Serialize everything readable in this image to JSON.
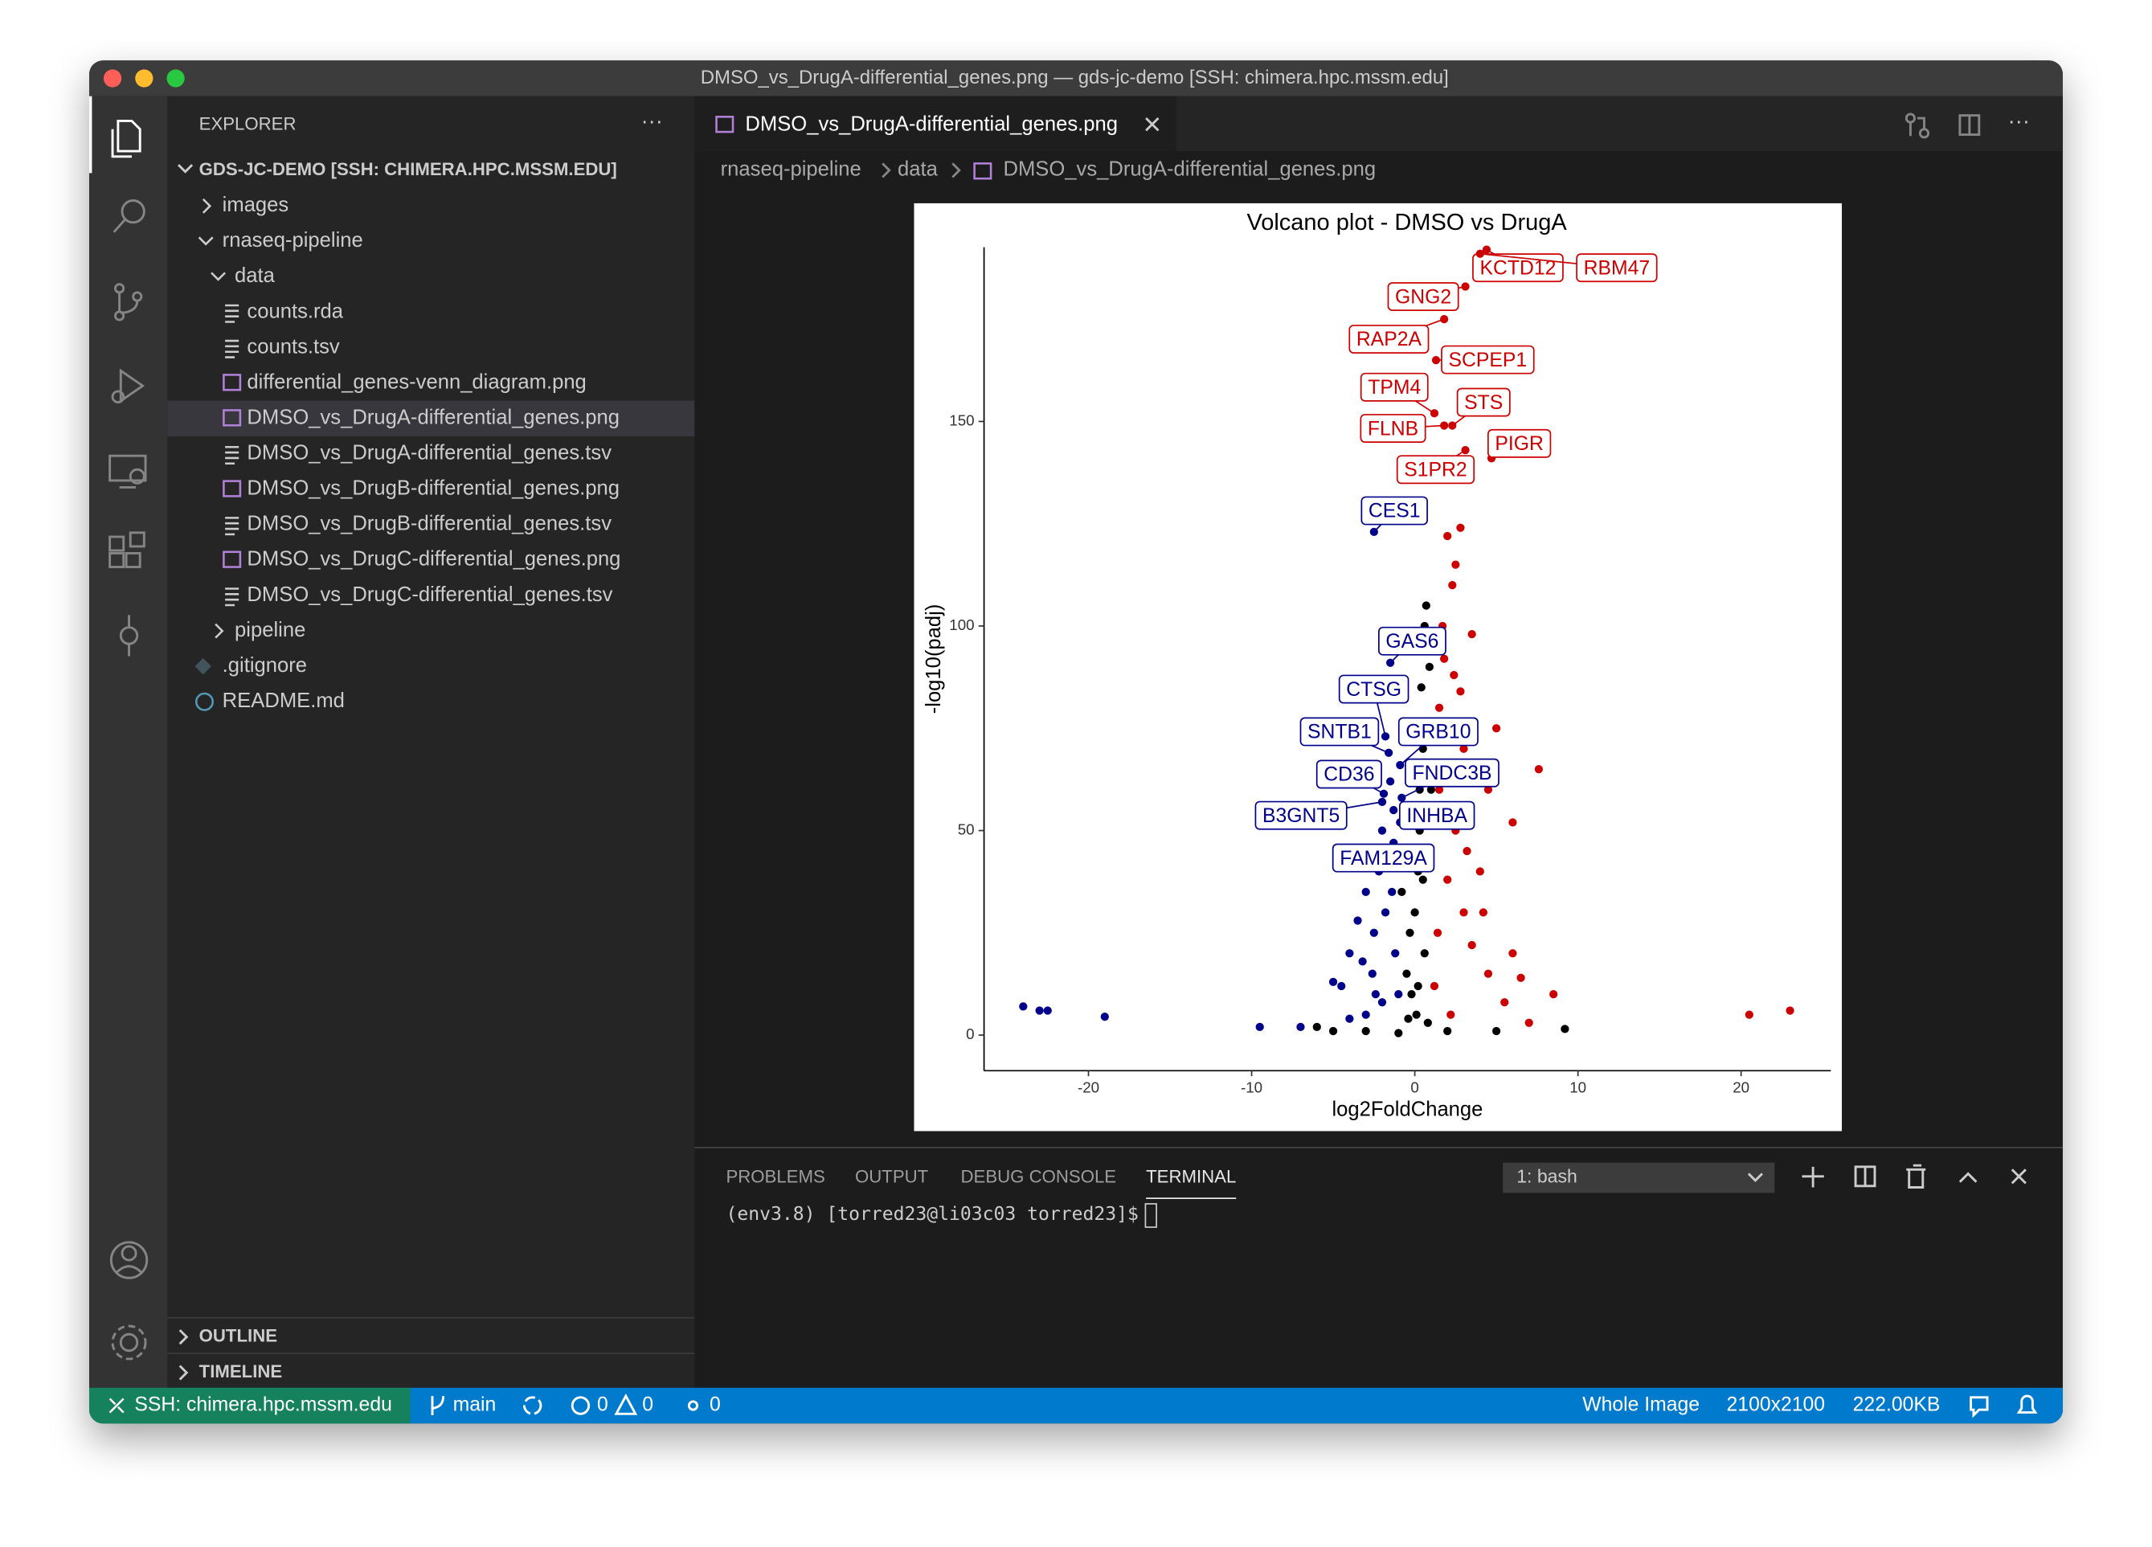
{
  "window": {
    "title": "DMSO_vs_DrugA-differential_genes.png — gds-jc-demo [SSH: chimera.hpc.mssm.edu]"
  },
  "explorer": {
    "header": "EXPLORER",
    "root": "GDS-JC-DEMO [SSH: CHIMERA.HPC.MSSM.EDU]",
    "tree": [
      "images",
      "rnaseq-pipeline",
      "data",
      "counts.rda",
      "counts.tsv",
      "differential_genes-venn_diagram.png",
      "DMSO_vs_DrugA-differential_genes.png",
      "DMSO_vs_DrugA-differential_genes.tsv",
      "DMSO_vs_DrugB-differential_genes.png",
      "DMSO_vs_DrugB-differential_genes.tsv",
      "DMSO_vs_DrugC-differential_genes.png",
      "DMSO_vs_DrugC-differential_genes.tsv",
      "pipeline",
      ".gitignore",
      "README.md"
    ],
    "sections": [
      "OUTLINE",
      "TIMELINE"
    ]
  },
  "editor": {
    "tab": "DMSO_vs_DrugA-differential_genes.png",
    "breadcrumb": [
      "rnaseq-pipeline",
      "data",
      "DMSO_vs_DrugA-differential_genes.png"
    ]
  },
  "chart_data": {
    "type": "scatter",
    "title": "Volcano plot - DMSO vs DrugA",
    "x_label": "log2FoldChange",
    "y_label": "-log10(padj)",
    "xlim": [
      -26.4,
      25.5
    ],
    "ylim": [
      -8.7,
      192.6
    ],
    "xticks": [
      -20,
      -10,
      0,
      10,
      20
    ],
    "yticks": [
      0,
      50,
      100,
      150
    ],
    "series": [
      {
        "color": "#00008b",
        "x": [
          -24,
          -23,
          -22.5,
          -19,
          -9.5,
          -7,
          -5,
          -4.5,
          -4,
          -3.5,
          -3,
          -2.8,
          -2.5,
          -2.2,
          -2,
          -1.8,
          -1.5,
          -1.3,
          -1.2,
          -1,
          -3,
          -2,
          -4,
          -2.6,
          -1.6,
          -3.2,
          -1.4,
          -2.4
        ],
        "values": [
          7,
          6,
          6,
          4.5,
          2,
          2,
          13,
          12,
          20,
          28,
          35,
          45,
          25,
          40,
          50,
          30,
          62,
          55,
          20,
          10,
          5,
          8,
          4,
          15,
          42,
          18,
          35,
          10
        ]
      },
      {
        "color": "#000000",
        "x": [
          -6,
          -5,
          -3,
          -1,
          -0.5,
          0,
          0.3,
          0.5,
          0.6,
          0.7,
          0.2,
          -0.3,
          0.1,
          0.4,
          1,
          0.8,
          2,
          5,
          9.2,
          -0.8,
          0.9,
          0.6,
          -0.2,
          0.3,
          0.1,
          -0.6,
          0.5,
          0.7,
          0.2,
          -0.4
        ],
        "values": [
          2,
          1,
          1,
          0.5,
          15,
          30,
          50,
          70,
          100,
          105,
          40,
          25,
          5,
          85,
          60,
          3,
          1,
          1,
          1.5,
          35,
          90,
          20,
          10,
          60,
          75,
          45,
          38,
          55,
          12,
          4
        ]
      },
      {
        "color": "#cc0000",
        "x": [
          20.5,
          23,
          7.6,
          6,
          3.5,
          2,
          2.8,
          2.3,
          2.5,
          1.8,
          2.4,
          3,
          5,
          4,
          6,
          8.5,
          4.5,
          3,
          2.5,
          1.5,
          2,
          1.2,
          2.2,
          7,
          3.5,
          1.5,
          2.8,
          5.5,
          4.5,
          1.7,
          3.2,
          6.5,
          1.4,
          2.6,
          4.2
        ],
        "values": [
          5,
          6,
          65,
          52,
          98,
          122,
          124,
          110,
          115,
          92,
          88,
          70,
          75,
          40,
          20,
          10,
          15,
          30,
          50,
          60,
          38,
          12,
          5,
          3,
          22,
          80,
          84,
          8,
          60,
          100,
          45,
          14,
          25,
          66,
          30
        ]
      }
    ],
    "annotations": [
      {
        "text": "KCTD12",
        "x": 4.4,
        "y": 192
      },
      {
        "text": "RBM47",
        "x": 4.0,
        "y": 191
      },
      {
        "text": "GNG2",
        "x": 3.1,
        "y": 183
      },
      {
        "text": "RAP2A",
        "x": 1.8,
        "y": 175
      },
      {
        "text": "SCPEP1",
        "x": 1.3,
        "y": 165
      },
      {
        "text": "TPM4",
        "x": 1.2,
        "y": 152
      },
      {
        "text": "STS",
        "x": 2.3,
        "y": 149
      },
      {
        "text": "FLNB",
        "x": 1.8,
        "y": 149
      },
      {
        "text": "PIGR",
        "x": 4.7,
        "y": 141
      },
      {
        "text": "S1PR2",
        "x": 3.1,
        "y": 143
      },
      {
        "text": "CES1",
        "x": -2.5,
        "y": 123
      },
      {
        "text": "GAS6",
        "x": -1.5,
        "y": 91
      },
      {
        "text": "CTSG",
        "x": -1.8,
        "y": 73
      },
      {
        "text": "SNTB1",
        "x": -1.6,
        "y": 69
      },
      {
        "text": "GRB10",
        "x": -0.9,
        "y": 66
      },
      {
        "text": "CD36",
        "x": -1.9,
        "y": 59
      },
      {
        "text": "FNDC3B",
        "x": -0.8,
        "y": 58
      },
      {
        "text": "B3GNT5",
        "x": -2.0,
        "y": 57
      },
      {
        "text": "INHBA",
        "x": -0.9,
        "y": 52
      },
      {
        "text": "FAM129A",
        "x": -1.3,
        "y": 47
      }
    ]
  },
  "panel": {
    "tabs": [
      "PROBLEMS",
      "OUTPUT",
      "DEBUG CONSOLE",
      "TERMINAL"
    ],
    "terminal_select": "1: bash",
    "prompt": "(env3.8) [torred23@li03c03 torred23]$"
  },
  "status_bar": {
    "remote": "SSH: chimera.hpc.mssm.edu",
    "branch": "main",
    "errors": "0",
    "warnings": "0",
    "ports": "0",
    "view": "Whole Image",
    "dimensions": "2100x2100",
    "size": "222.00KB"
  }
}
